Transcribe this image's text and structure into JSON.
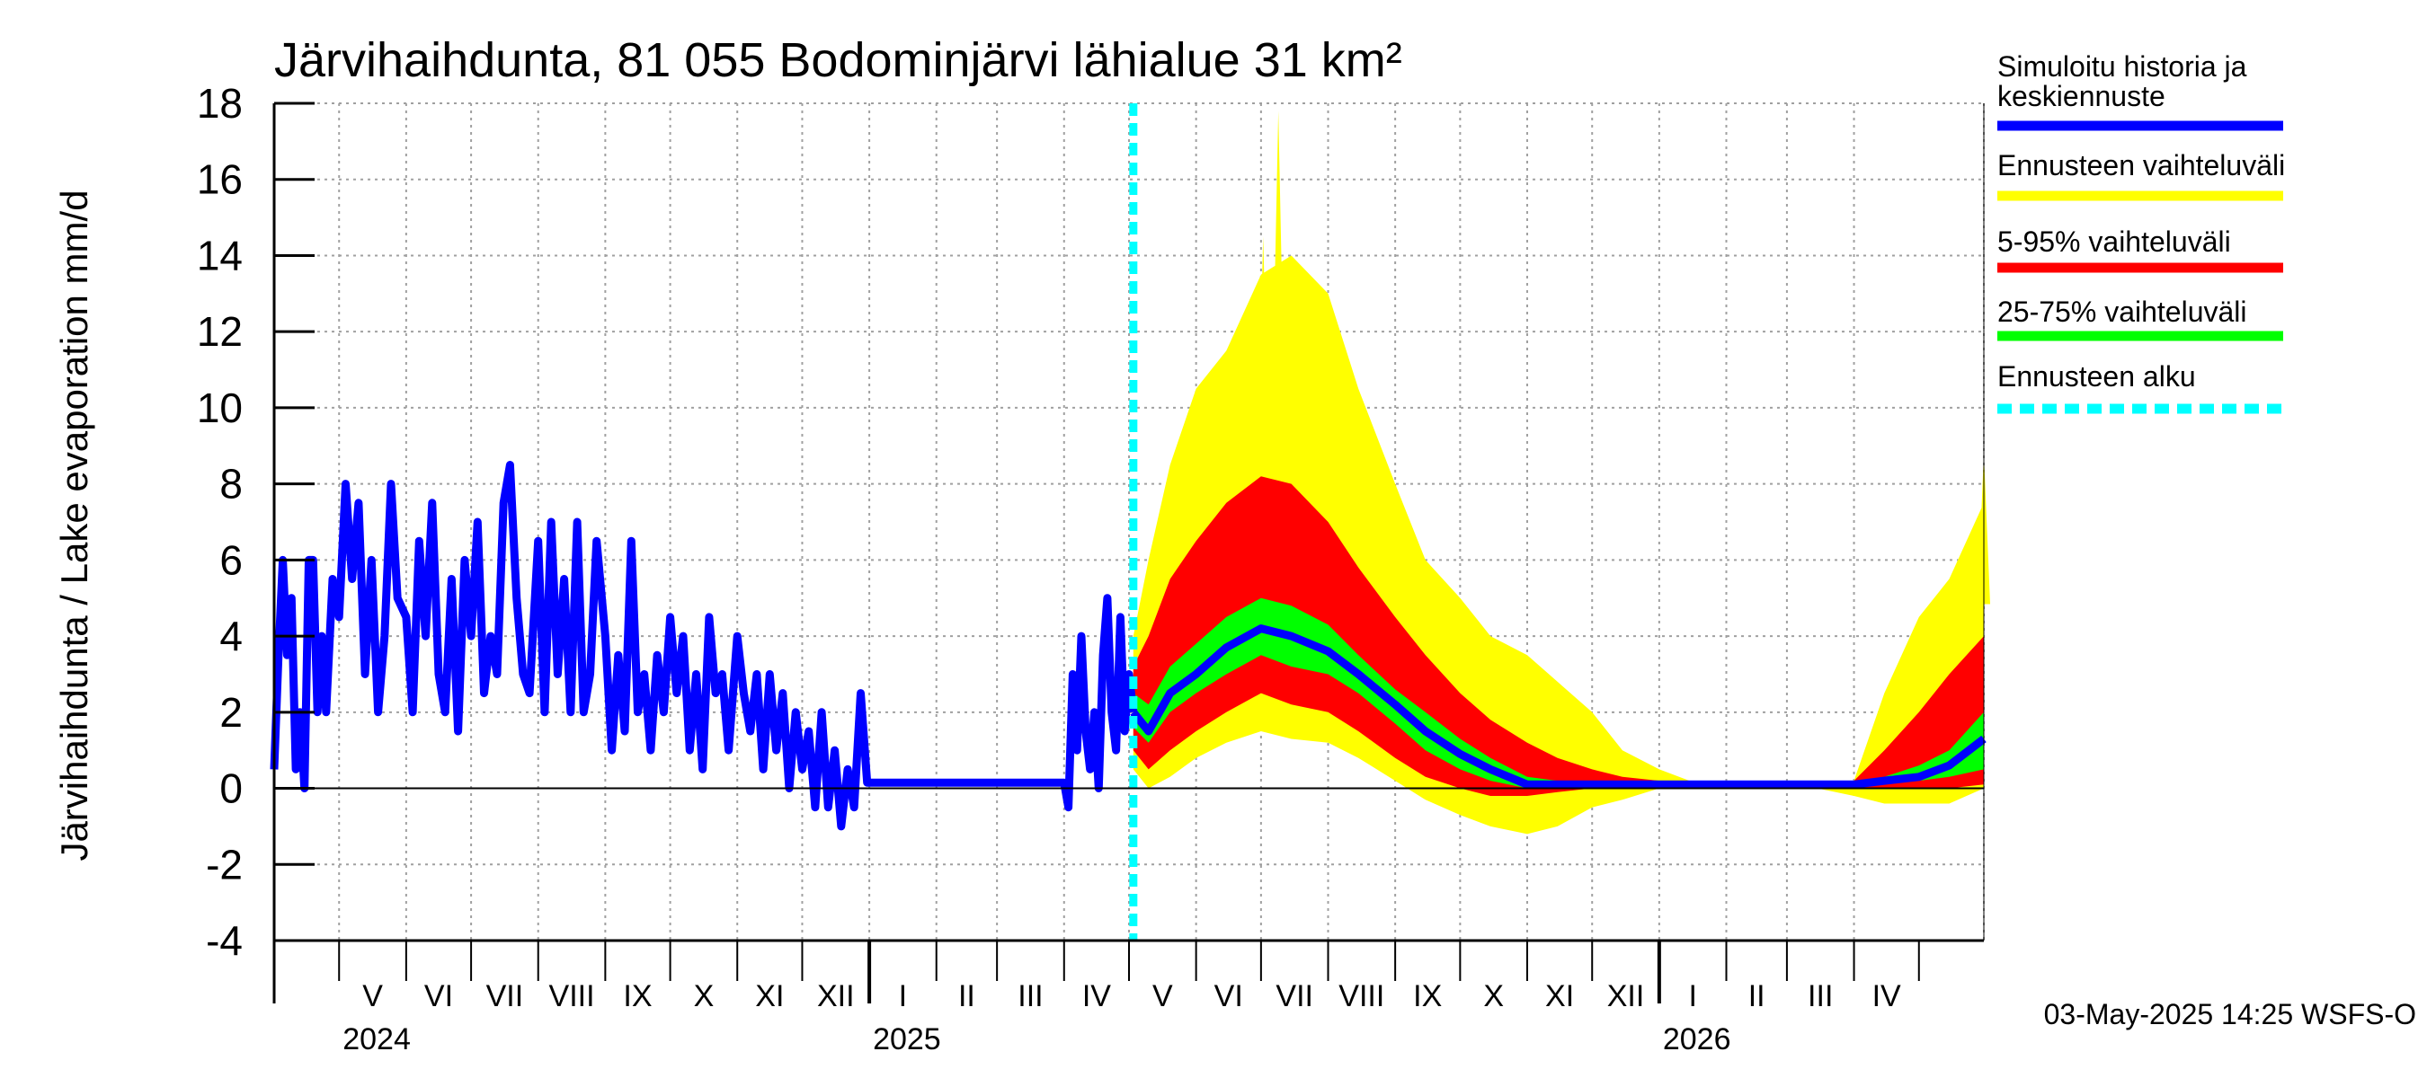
{
  "chart_data": {
    "type": "area",
    "title": "Järvihaihdunta, 81 055 Bodominjärvi lähialue 31 km²",
    "ylabel": "Järvihaihdunta / Lake evaporation   mm/d",
    "xlabel": "",
    "ylim": [
      -4,
      18
    ],
    "yticks": [
      "-4",
      "-2",
      "0",
      "2",
      "4",
      "6",
      "8",
      "10",
      "12",
      "14",
      "16",
      "18"
    ],
    "grid": true,
    "legend_position": "right",
    "x_start": "2024-04-01",
    "x_end": "2026-05-31",
    "forecast_start": "2025-05-03",
    "months": [
      {
        "label": "V",
        "start": "2024-05-01",
        "end": "2024-06-01"
      },
      {
        "label": "VI",
        "start": "2024-06-01",
        "end": "2024-07-01"
      },
      {
        "label": "VII",
        "start": "2024-07-01",
        "end": "2024-08-01"
      },
      {
        "label": "VIII",
        "start": "2024-08-01",
        "end": "2024-09-01"
      },
      {
        "label": "IX",
        "start": "2024-09-01",
        "end": "2024-10-01"
      },
      {
        "label": "X",
        "start": "2024-10-01",
        "end": "2024-11-01"
      },
      {
        "label": "XI",
        "start": "2024-11-01",
        "end": "2024-12-01"
      },
      {
        "label": "XII",
        "start": "2024-12-01",
        "end": "2025-01-01"
      },
      {
        "label": "I",
        "start": "2025-01-01",
        "end": "2025-02-01"
      },
      {
        "label": "II",
        "start": "2025-02-01",
        "end": "2025-03-01"
      },
      {
        "label": "III",
        "start": "2025-03-01",
        "end": "2025-04-01"
      },
      {
        "label": "IV",
        "start": "2025-04-01",
        "end": "2025-05-01"
      },
      {
        "label": "V",
        "start": "2025-05-01",
        "end": "2025-06-01"
      },
      {
        "label": "VI",
        "start": "2025-06-01",
        "end": "2025-07-01"
      },
      {
        "label": "VII",
        "start": "2025-07-01",
        "end": "2025-08-01"
      },
      {
        "label": "VIII",
        "start": "2025-08-01",
        "end": "2025-09-01"
      },
      {
        "label": "IX",
        "start": "2025-09-01",
        "end": "2025-10-01"
      },
      {
        "label": "X",
        "start": "2025-10-01",
        "end": "2025-11-01"
      },
      {
        "label": "XI",
        "start": "2025-11-01",
        "end": "2025-12-01"
      },
      {
        "label": "XII",
        "start": "2025-12-01",
        "end": "2026-01-01"
      },
      {
        "label": "I",
        "start": "2026-01-01",
        "end": "2026-02-01"
      },
      {
        "label": "II",
        "start": "2026-02-01",
        "end": "2026-03-01"
      },
      {
        "label": "III",
        "start": "2026-03-01",
        "end": "2026-04-01"
      },
      {
        "label": "IV",
        "start": "2026-04-01",
        "end": "2026-05-01"
      }
    ],
    "years": [
      {
        "label": "2024",
        "date": "2024-05-01"
      },
      {
        "label": "2025",
        "date": "2025-01-01"
      },
      {
        "label": "2026",
        "date": "2026-01-01"
      }
    ],
    "history": {
      "name": "Simuloitu historia ja keskiennuste",
      "x": [
        "2024-04-01",
        "2024-04-03",
        "2024-04-05",
        "2024-04-07",
        "2024-04-09",
        "2024-04-11",
        "2024-04-13",
        "2024-04-15",
        "2024-04-17",
        "2024-04-19",
        "2024-04-21",
        "2024-04-23",
        "2024-04-25",
        "2024-04-28",
        "2024-05-01",
        "2024-05-04",
        "2024-05-07",
        "2024-05-10",
        "2024-05-13",
        "2024-05-16",
        "2024-05-19",
        "2024-05-22",
        "2024-05-25",
        "2024-05-28",
        "2024-06-01",
        "2024-06-04",
        "2024-06-07",
        "2024-06-10",
        "2024-06-13",
        "2024-06-16",
        "2024-06-19",
        "2024-06-22",
        "2024-06-25",
        "2024-06-28",
        "2024-07-01",
        "2024-07-04",
        "2024-07-07",
        "2024-07-10",
        "2024-07-13",
        "2024-07-16",
        "2024-07-19",
        "2024-07-22",
        "2024-07-25",
        "2024-07-28",
        "2024-08-01",
        "2024-08-04",
        "2024-08-07",
        "2024-08-10",
        "2024-08-13",
        "2024-08-16",
        "2024-08-19",
        "2024-08-22",
        "2024-08-25",
        "2024-08-28",
        "2024-09-01",
        "2024-09-04",
        "2024-09-07",
        "2024-09-10",
        "2024-09-13",
        "2024-09-16",
        "2024-09-19",
        "2024-09-22",
        "2024-09-25",
        "2024-09-28",
        "2024-10-01",
        "2024-10-04",
        "2024-10-07",
        "2024-10-10",
        "2024-10-13",
        "2024-10-16",
        "2024-10-19",
        "2024-10-22",
        "2024-10-25",
        "2024-10-28",
        "2024-11-01",
        "2024-11-04",
        "2024-11-07",
        "2024-11-10",
        "2024-11-13",
        "2024-11-16",
        "2024-11-19",
        "2024-11-22",
        "2024-11-25",
        "2024-11-28",
        "2024-12-01",
        "2024-12-04",
        "2024-12-07",
        "2024-12-10",
        "2024-12-13",
        "2024-12-16",
        "2024-12-19",
        "2024-12-22",
        "2024-12-25",
        "2024-12-28",
        "2024-12-31",
        "2025-01-15",
        "2025-02-01",
        "2025-02-15",
        "2025-03-01",
        "2025-03-15",
        "2025-03-28",
        "2025-04-01",
        "2025-04-03",
        "2025-04-05",
        "2025-04-07",
        "2025-04-09",
        "2025-04-11",
        "2025-04-13",
        "2025-04-15",
        "2025-04-17",
        "2025-04-19",
        "2025-04-21",
        "2025-04-23",
        "2025-04-25",
        "2025-04-27",
        "2025-04-29",
        "2025-05-01",
        "2025-05-03"
      ],
      "y": [
        0.5,
        3.5,
        6.0,
        3.5,
        5.0,
        0.5,
        2.0,
        0.0,
        6.0,
        6.0,
        2.0,
        4.0,
        2.0,
        5.5,
        4.5,
        8.0,
        5.5,
        7.5,
        3.0,
        6.0,
        2.0,
        4.0,
        8.0,
        5.0,
        4.5,
        2.0,
        6.5,
        4.0,
        7.5,
        3.0,
        2.0,
        5.5,
        1.5,
        6.0,
        4.0,
        7.0,
        2.5,
        4.0,
        3.0,
        7.5,
        8.5,
        5.0,
        3.0,
        2.5,
        6.5,
        2.0,
        7.0,
        3.0,
        5.5,
        2.0,
        7.0,
        2.0,
        3.0,
        6.5,
        4.0,
        1.0,
        3.5,
        1.5,
        6.5,
        2.0,
        3.0,
        1.0,
        3.5,
        2.0,
        4.5,
        2.5,
        4.0,
        1.0,
        3.0,
        0.5,
        4.5,
        2.5,
        3.0,
        1.0,
        4.0,
        2.5,
        1.5,
        3.0,
        0.5,
        3.0,
        1.0,
        2.5,
        0.0,
        2.0,
        0.5,
        1.5,
        -0.5,
        2.0,
        -0.5,
        1.0,
        -1.0,
        0.5,
        -0.5,
        2.5,
        0.15,
        0.15,
        0.15,
        0.15,
        0.15,
        0.15,
        0.15,
        0.15,
        -0.5,
        3.0,
        1.0,
        4.0,
        1.5,
        0.5,
        2.0,
        0.0,
        3.5,
        5.0,
        2.0,
        1.0,
        4.5,
        1.5,
        3.0,
        2.0
      ]
    },
    "forecast": {
      "x": [
        "2025-05-03",
        "2025-05-10",
        "2025-05-20",
        "2025-06-01",
        "2025-06-15",
        "2025-07-01",
        "2025-07-15",
        "2025-08-01",
        "2025-08-15",
        "2025-09-01",
        "2025-09-15",
        "2025-10-01",
        "2025-10-15",
        "2025-11-01",
        "2025-11-15",
        "2025-12-01",
        "2025-12-15",
        "2026-01-01",
        "2026-01-15",
        "2026-02-01",
        "2026-02-15",
        "2026-03-01",
        "2026-03-15",
        "2026-04-01",
        "2026-04-15",
        "2026-05-01",
        "2026-05-15",
        "2026-05-31"
      ],
      "min": [
        0.5,
        0.0,
        0.3,
        0.8,
        1.2,
        1.5,
        1.3,
        1.2,
        0.8,
        0.2,
        -0.3,
        -0.7,
        -1.0,
        -1.2,
        -1.0,
        -0.5,
        -0.3,
        0.0,
        0.0,
        0.0,
        0.0,
        0.0,
        0.0,
        -0.2,
        -0.4,
        -0.4,
        -0.4,
        0.0
      ],
      "p5": [
        1.0,
        0.5,
        1.0,
        1.5,
        2.0,
        2.5,
        2.2,
        2.0,
        1.5,
        0.8,
        0.3,
        0.0,
        -0.2,
        -0.2,
        -0.1,
        0.0,
        0.0,
        0.0,
        0.0,
        0.0,
        0.0,
        0.0,
        0.0,
        0.0,
        0.0,
        0.0,
        0.0,
        0.1
      ],
      "p25": [
        1.6,
        1.2,
        2.0,
        2.5,
        3.0,
        3.5,
        3.2,
        3.0,
        2.5,
        1.7,
        1.0,
        0.5,
        0.2,
        0.0,
        0.0,
        0.0,
        0.0,
        0.0,
        0.0,
        0.0,
        0.0,
        0.0,
        0.0,
        0.0,
        0.1,
        0.2,
        0.3,
        0.5
      ],
      "median": [
        2.0,
        1.5,
        2.5,
        3.0,
        3.7,
        4.2,
        4.0,
        3.6,
        3.0,
        2.2,
        1.5,
        0.9,
        0.5,
        0.1,
        0.1,
        0.1,
        0.1,
        0.1,
        0.1,
        0.1,
        0.1,
        0.1,
        0.1,
        0.1,
        0.2,
        0.3,
        0.6,
        1.3
      ],
      "p75": [
        2.5,
        2.2,
        3.2,
        3.8,
        4.5,
        5.0,
        4.8,
        4.3,
        3.5,
        2.6,
        2.0,
        1.3,
        0.8,
        0.3,
        0.2,
        0.2,
        0.2,
        0.2,
        0.2,
        0.2,
        0.2,
        0.2,
        0.2,
        0.2,
        0.3,
        0.6,
        1.0,
        2.0
      ],
      "p95": [
        3.2,
        4.0,
        5.5,
        6.5,
        7.5,
        8.2,
        8.0,
        7.0,
        5.8,
        4.5,
        3.5,
        2.5,
        1.8,
        1.2,
        0.8,
        0.5,
        0.3,
        0.2,
        0.2,
        0.2,
        0.2,
        0.2,
        0.2,
        0.2,
        1.0,
        2.0,
        3.0,
        4.0
      ],
      "max": [
        4.0,
        6.0,
        8.5,
        10.5,
        11.5,
        13.5,
        14.0,
        13.0,
        10.5,
        8.0,
        6.0,
        5.0,
        4.0,
        3.5,
        2.8,
        2.0,
        1.0,
        0.5,
        0.2,
        0.2,
        0.2,
        0.2,
        0.2,
        0.2,
        2.5,
        4.5,
        5.5,
        7.5
      ],
      "peaks": [
        {
          "x": "2025-07-09",
          "y": 17.8
        },
        {
          "x": "2025-07-02",
          "y": 14.5
        },
        {
          "x": "2025-07-25",
          "y": 13.2
        },
        {
          "x": "2025-06-25",
          "y": 12.5
        },
        {
          "x": "2026-05-31",
          "y": 8.8
        }
      ]
    }
  },
  "legend": {
    "items": [
      {
        "label": "Simuloitu historia ja",
        "label2": "keskiennuste",
        "color": "#0000ff",
        "style": "solid"
      },
      {
        "label": "Ennusteen vaihteluväli",
        "label2": "",
        "color": "#ffff00",
        "style": "solid"
      },
      {
        "label": "5-95% vaihteluväli",
        "label2": "",
        "color": "#ff0000",
        "style": "solid"
      },
      {
        "label": "25-75% vaihteluväli",
        "label2": "",
        "color": "#00ff00",
        "style": "solid"
      },
      {
        "label": "Ennusteen alku",
        "label2": "",
        "color": "#00ffff",
        "style": "dashed"
      }
    ]
  },
  "colors": {
    "history": "#0000ff",
    "full_range": "#ffff00",
    "p5_95": "#ff0000",
    "p25_75": "#00ff00",
    "forecast_start": "#00ffff",
    "grid": "#a0a0a0"
  },
  "timestamp": "03-May-2025 14:25 WSFS-O"
}
